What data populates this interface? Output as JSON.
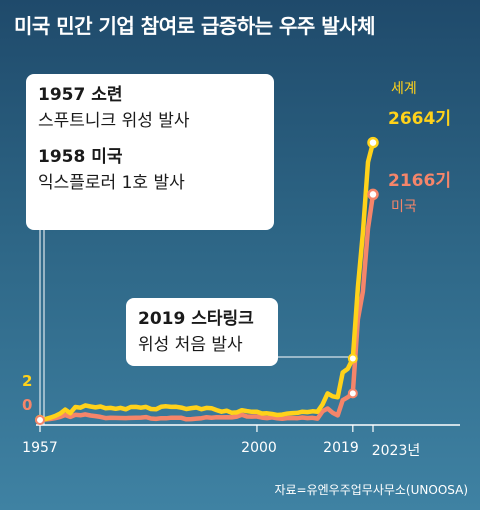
{
  "title": "미국 민간 기업 참여로 급증하는 우주 발사체",
  "source": "자료=유엔우주업무사무소(UNOOSA)",
  "colors": {
    "world": "#ffd21a",
    "us": "#f5856a",
    "background": "#2d6585"
  },
  "chart_data": {
    "type": "line",
    "xlim": [
      1957,
      2023
    ],
    "ylim": [
      0,
      2900
    ],
    "x_ticks": [
      "1957",
      "2000",
      "2019",
      "2023년"
    ],
    "series": [
      {
        "name": "세계",
        "color": "#ffd21a",
        "start_label": "2",
        "end_label": "2664기",
        "points": [
          [
            1957,
            2
          ],
          [
            1958,
            8
          ],
          [
            1959,
            22
          ],
          [
            1960,
            38
          ],
          [
            1961,
            62
          ],
          [
            1962,
            100
          ],
          [
            1963,
            66
          ],
          [
            1964,
            125
          ],
          [
            1965,
            118
          ],
          [
            1966,
            140
          ],
          [
            1967,
            130
          ],
          [
            1968,
            121
          ],
          [
            1969,
            130
          ],
          [
            1970,
            112
          ],
          [
            1971,
            116
          ],
          [
            1972,
            108
          ],
          [
            1973,
            116
          ],
          [
            1974,
            103
          ],
          [
            1975,
            125
          ],
          [
            1976,
            126
          ],
          [
            1977,
            118
          ],
          [
            1978,
            126
          ],
          [
            1979,
            106
          ],
          [
            1980,
            103
          ],
          [
            1981,
            127
          ],
          [
            1982,
            132
          ],
          [
            1983,
            126
          ],
          [
            1984,
            127
          ],
          [
            1985,
            119
          ],
          [
            1986,
            106
          ],
          [
            1987,
            114
          ],
          [
            1988,
            120
          ],
          [
            1989,
            104
          ],
          [
            1990,
            116
          ],
          [
            1991,
            113
          ],
          [
            1992,
            95
          ],
          [
            1993,
            80
          ],
          [
            1994,
            89
          ],
          [
            1995,
            69
          ],
          [
            1996,
            73
          ],
          [
            1997,
            94
          ],
          [
            1998,
            85
          ],
          [
            1999,
            79
          ],
          [
            2000,
            80
          ],
          [
            2001,
            62
          ],
          [
            2002,
            64
          ],
          [
            2003,
            58
          ],
          [
            2004,
            48
          ],
          [
            2005,
            52
          ],
          [
            2006,
            61
          ],
          [
            2007,
            66
          ],
          [
            2008,
            68
          ],
          [
            2009,
            80
          ],
          [
            2010,
            76
          ],
          [
            2011,
            84
          ],
          [
            2012,
            80
          ],
          [
            2013,
            149
          ],
          [
            2014,
            255
          ],
          [
            2015,
            228
          ],
          [
            2016,
            218
          ],
          [
            2017,
            456
          ],
          [
            2018,
            492
          ],
          [
            2019,
            590
          ],
          [
            2020,
            1276
          ],
          [
            2021,
            1799
          ],
          [
            2022,
            2477
          ],
          [
            2023,
            2664
          ]
        ]
      },
      {
        "name": "미국",
        "color": "#f5856a",
        "start_label": "0",
        "end_label": "2166기",
        "points": [
          [
            1957,
            0
          ],
          [
            1958,
            5
          ],
          [
            1959,
            10
          ],
          [
            1960,
            17
          ],
          [
            1961,
            30
          ],
          [
            1962,
            48
          ],
          [
            1963,
            30
          ],
          [
            1964,
            50
          ],
          [
            1965,
            45
          ],
          [
            1966,
            54
          ],
          [
            1967,
            43
          ],
          [
            1968,
            37
          ],
          [
            1969,
            30
          ],
          [
            1970,
            18
          ],
          [
            1971,
            21
          ],
          [
            1972,
            20
          ],
          [
            1973,
            19
          ],
          [
            1974,
            18
          ],
          [
            1975,
            20
          ],
          [
            1976,
            21
          ],
          [
            1977,
            23
          ],
          [
            1978,
            28
          ],
          [
            1979,
            14
          ],
          [
            1980,
            11
          ],
          [
            1981,
            17
          ],
          [
            1982,
            16
          ],
          [
            1983,
            22
          ],
          [
            1984,
            22
          ],
          [
            1985,
            21
          ],
          [
            1986,
            7
          ],
          [
            1987,
            9
          ],
          [
            1988,
            13
          ],
          [
            1989,
            17
          ],
          [
            1990,
            27
          ],
          [
            1991,
            22
          ],
          [
            1992,
            27
          ],
          [
            1993,
            25
          ],
          [
            1994,
            27
          ],
          [
            1995,
            25
          ],
          [
            1996,
            33
          ],
          [
            1997,
            50
          ],
          [
            1998,
            34
          ],
          [
            1999,
            33
          ],
          [
            2000,
            34
          ],
          [
            2001,
            23
          ],
          [
            2002,
            18
          ],
          [
            2003,
            25
          ],
          [
            2004,
            16
          ],
          [
            2005,
            12
          ],
          [
            2006,
            18
          ],
          [
            2007,
            19
          ],
          [
            2008,
            17
          ],
          [
            2009,
            24
          ],
          [
            2010,
            18
          ],
          [
            2011,
            21
          ],
          [
            2012,
            13
          ],
          [
            2013,
            84
          ],
          [
            2014,
            110
          ],
          [
            2015,
            70
          ],
          [
            2016,
            44
          ],
          [
            2017,
            190
          ],
          [
            2018,
            219
          ],
          [
            2019,
            256
          ],
          [
            2020,
            968
          ],
          [
            2021,
            1234
          ],
          [
            2022,
            1840
          ],
          [
            2023,
            2166
          ]
        ]
      }
    ],
    "annotations": [
      {
        "year": 1957,
        "line1": "1957 소련",
        "line2": "스푸트니크 위성 발사",
        "line3": "1958 미국",
        "line4": "익스플로러 1호 발사"
      },
      {
        "year": 2019,
        "line1": "2019 스타링크",
        "line2": "위성 처음 발사"
      }
    ]
  }
}
